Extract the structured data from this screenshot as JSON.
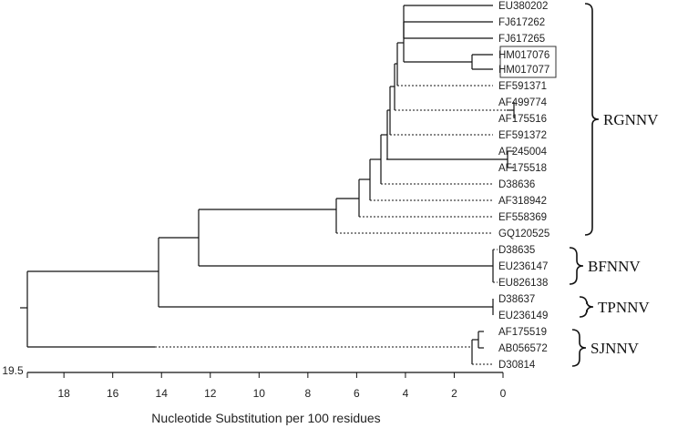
{
  "taxa": [
    "EU380202",
    "FJ617262",
    "FJ617265",
    "HM017076",
    "HM017077",
    "EF591371",
    "AF499774",
    "AF175516",
    "EF591372",
    "AF245004",
    "AF175518",
    "D38636",
    "AF318942",
    "EF558369",
    "GQ120525",
    "D38635",
    "EU236147",
    "EU826138",
    "D38637",
    "EU236149",
    "AF175519",
    "AB056572",
    "D30814"
  ],
  "clades": [
    {
      "name": "RGNNV",
      "first": 0,
      "last": 14
    },
    {
      "name": "BFNNV",
      "first": 15,
      "last": 17
    },
    {
      "name": "TPNNV",
      "first": 18,
      "last": 19
    },
    {
      "name": "SJNNV",
      "first": 20,
      "last": 22
    }
  ],
  "boxed_taxa": [
    3,
    4
  ],
  "axis": {
    "title": "Nucleotide Substitution per 100 residues",
    "max_label": "19.5",
    "ticks": [
      "18",
      "16",
      "14",
      "12",
      "10",
      "8",
      "6",
      "4",
      "2",
      "0"
    ],
    "range": [
      0,
      19.5
    ],
    "reversed": true
  }
}
